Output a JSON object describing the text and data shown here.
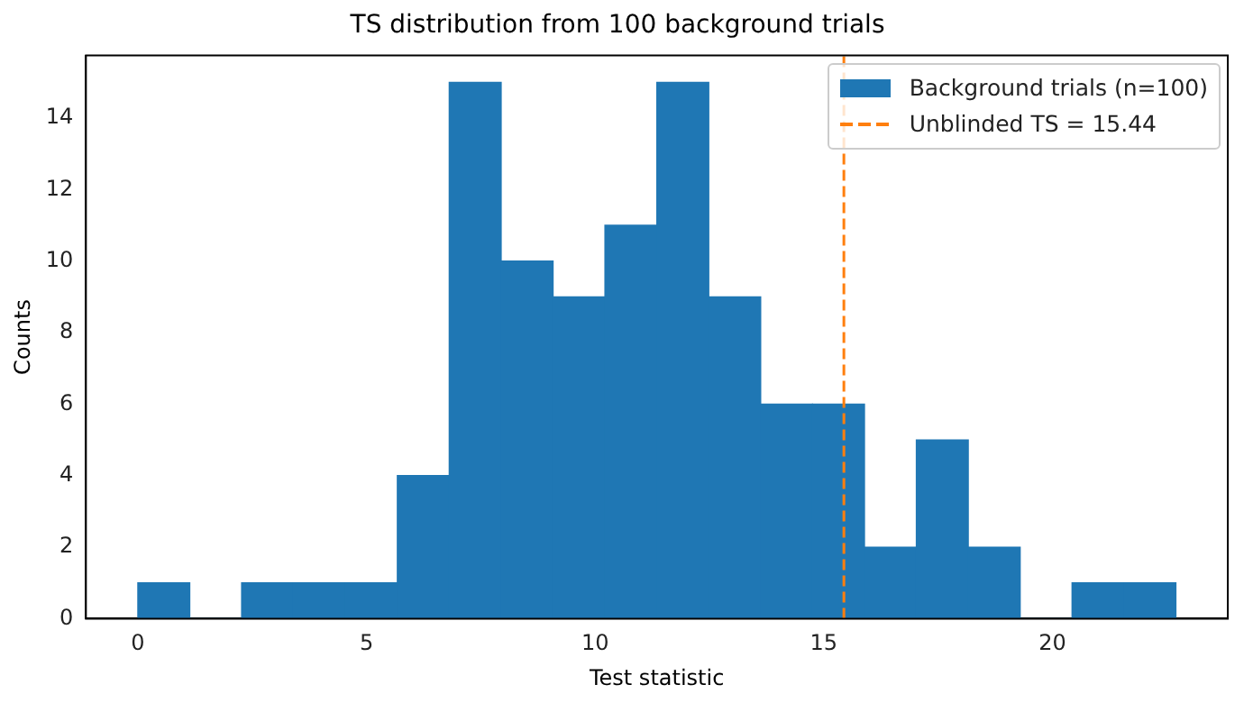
{
  "chart_data": {
    "type": "histogram",
    "title": "TS distribution from 100 background trials",
    "xlabel": "Test statistic",
    "ylabel": "Counts",
    "bins": [
      0,
      1.135,
      2.27,
      3.405,
      4.54,
      5.675,
      6.81,
      7.945,
      9.08,
      10.215,
      11.35,
      12.485,
      13.62,
      14.755,
      15.89,
      17.025,
      18.16,
      19.295,
      20.43,
      21.565,
      22.7
    ],
    "series": [
      {
        "name": "Background trials (n=100)",
        "color": "#1f77b4",
        "values": [
          1,
          0,
          1,
          1,
          1,
          4,
          15,
          10,
          9,
          11,
          15,
          9,
          6,
          6,
          2,
          5,
          2,
          0,
          1,
          1
        ]
      }
    ],
    "ref_lines": [
      {
        "axis": "x",
        "value": 15.44,
        "label": "Unblinded TS = 15.44",
        "color": "#ff7f0e",
        "line_style": "dashed"
      }
    ],
    "xlim": [
      -1.135,
      23.835
    ],
    "ylim": [
      0,
      15.75
    ],
    "xticks": [
      0,
      5,
      10,
      15,
      20
    ],
    "yticks": [
      0,
      2,
      4,
      6,
      8,
      10,
      12,
      14
    ],
    "legend": "top right",
    "grid": false
  }
}
